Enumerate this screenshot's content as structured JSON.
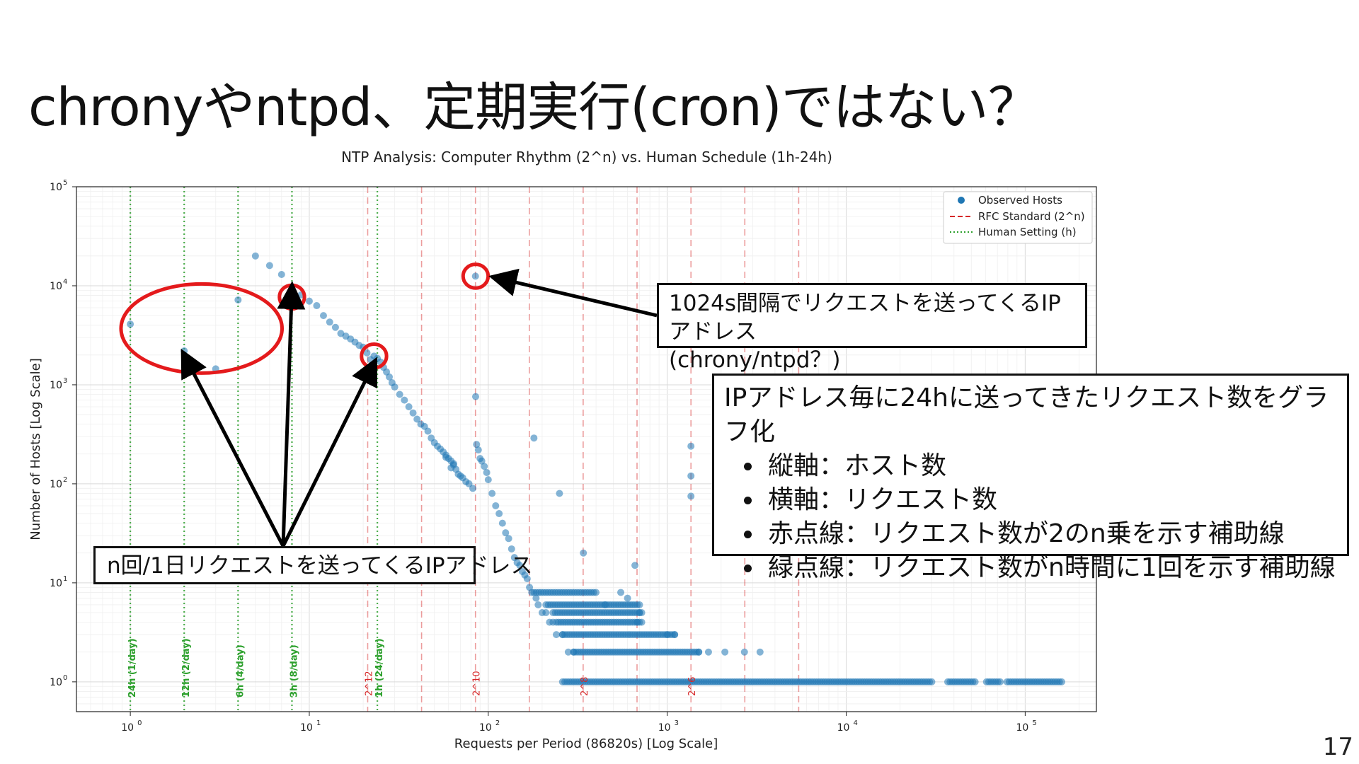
{
  "slide": {
    "title": "chronyやntpd、定期実行(cron)ではない？",
    "page_number": "17"
  },
  "callouts": {
    "ntp_1024": {
      "line1": "1024s間隔でリクエストを送ってくるIPアドレス",
      "line2": "(chrony/ntpd？)"
    },
    "daily": {
      "text": "n回/1日リクエストを送ってくるIPアドレス"
    },
    "explain": {
      "heading": "IPアドレス毎に24hに送ってきたリクエスト数をグラフ化",
      "bullets": [
        "縦軸：ホスト数",
        "横軸：リクエスト数",
        "赤点線：リクエスト数が2のn乗を示す補助線",
        "緑点線：リクエスト数がn時間に1回を示す補助線"
      ]
    }
  },
  "colors": {
    "points": "#1f77b4",
    "rfc_lines": "#d62728",
    "human_lines": "#2ca02c",
    "highlight_circles": "#e41a1c",
    "arrows": "#000000"
  },
  "chart_data": {
    "type": "scatter",
    "title": "NTP Analysis: Computer Rhythm (2^n) vs. Human Schedule (1h-24h)",
    "xlabel": "Requests per Period (86820s) [Log Scale]",
    "ylabel": "Number of Hosts [Log Scale]",
    "x_scale": "log",
    "y_scale": "log",
    "xlim": [
      0.5,
      250000
    ],
    "ylim": [
      0.5,
      100000
    ],
    "x_ticks": [
      {
        "value": 1,
        "base": "10",
        "exp": "0"
      },
      {
        "value": 10,
        "base": "10",
        "exp": "1"
      },
      {
        "value": 100,
        "base": "10",
        "exp": "2"
      },
      {
        "value": 1000,
        "base": "10",
        "exp": "3"
      },
      {
        "value": 10000,
        "base": "10",
        "exp": "4"
      },
      {
        "value": 100000,
        "base": "10",
        "exp": "5"
      }
    ],
    "y_ticks": [
      {
        "value": 1,
        "base": "10",
        "exp": "0"
      },
      {
        "value": 10,
        "base": "10",
        "exp": "1"
      },
      {
        "value": 100,
        "base": "10",
        "exp": "2"
      },
      {
        "value": 1000,
        "base": "10",
        "exp": "3"
      },
      {
        "value": 10000,
        "base": "10",
        "exp": "4"
      },
      {
        "value": 100000,
        "base": "10",
        "exp": "5"
      }
    ],
    "grid": true,
    "legend": {
      "placement": "top-right",
      "entries": [
        {
          "label": "Observed Hosts",
          "style": "point"
        },
        {
          "label": "RFC Standard (2^n)",
          "style": "dashed"
        },
        {
          "label": "Human Setting (h)",
          "style": "dotted"
        }
      ]
    },
    "rfc_lines": [
      {
        "x": 21.2,
        "label": "2^12"
      },
      {
        "x": 42.4,
        "label": ""
      },
      {
        "x": 84.8,
        "label": "2^10"
      },
      {
        "x": 169.6,
        "label": ""
      },
      {
        "x": 339,
        "label": "2^8"
      },
      {
        "x": 678,
        "label": ""
      },
      {
        "x": 1357,
        "label": "2^6"
      },
      {
        "x": 2713,
        "label": ""
      },
      {
        "x": 5426,
        "label": ""
      }
    ],
    "human_lines": [
      {
        "x": 1,
        "label": "24h (1/day)"
      },
      {
        "x": 2,
        "label": "12h (2/day)"
      },
      {
        "x": 4,
        "label": "6h (4/day)"
      },
      {
        "x": 8,
        "label": "3h (8/day)"
      },
      {
        "x": 24,
        "label": "1h (24/day)"
      }
    ],
    "highlight_circles": [
      {
        "x": 2.5,
        "y": 3700,
        "rx_decades": 0.45,
        "ry_decades": 0.45
      },
      {
        "x": 8,
        "y": 7700,
        "rx_decades": 0.07,
        "ry_decades": 0.12
      },
      {
        "x": 23,
        "y": 1950,
        "rx_decades": 0.07,
        "ry_decades": 0.12
      },
      {
        "x": 85,
        "y": 12500,
        "rx_decades": 0.07,
        "ry_decades": 0.12
      }
    ],
    "series": [
      {
        "name": "Observed Hosts",
        "points": [
          [
            1,
            4100
          ],
          [
            2,
            2200
          ],
          [
            3,
            1450
          ],
          [
            4,
            7200
          ],
          [
            5,
            20000
          ],
          [
            6,
            16000
          ],
          [
            7,
            13000
          ],
          [
            8,
            7700
          ],
          [
            9,
            8100
          ],
          [
            10,
            7000
          ],
          [
            11,
            6300
          ],
          [
            12,
            5000
          ],
          [
            13,
            4300
          ],
          [
            14,
            3800
          ],
          [
            15,
            3300
          ],
          [
            16,
            3100
          ],
          [
            17,
            2900
          ],
          [
            18,
            2700
          ],
          [
            19,
            2500
          ],
          [
            20,
            2400
          ],
          [
            21,
            2100
          ],
          [
            22,
            1800
          ],
          [
            23,
            1950
          ],
          [
            24,
            1850
          ],
          [
            25,
            1700
          ],
          [
            26,
            1500
          ],
          [
            27,
            1350
          ],
          [
            28,
            1200
          ],
          [
            29,
            1050
          ],
          [
            30,
            950
          ],
          [
            32,
            800
          ],
          [
            34,
            700
          ],
          [
            36,
            600
          ],
          [
            38,
            520
          ],
          [
            40,
            450
          ],
          [
            42,
            400
          ],
          [
            44,
            380
          ],
          [
            46,
            340
          ],
          [
            48,
            290
          ],
          [
            50,
            260
          ],
          [
            52,
            240
          ],
          [
            54,
            225
          ],
          [
            56,
            210
          ],
          [
            58,
            195
          ],
          [
            60,
            180
          ],
          [
            62,
            170
          ],
          [
            64,
            160
          ],
          [
            66,
            140
          ],
          [
            68,
            125
          ],
          [
            70,
            120
          ],
          [
            72,
            115
          ],
          [
            75,
            105
          ],
          [
            78,
            100
          ],
          [
            82,
            90
          ],
          [
            84.8,
            12500
          ],
          [
            85,
            760
          ],
          [
            86,
            250
          ],
          [
            88,
            220
          ],
          [
            90,
            180
          ],
          [
            92,
            170
          ],
          [
            95,
            150
          ],
          [
            98,
            130
          ],
          [
            100,
            110
          ],
          [
            105,
            80
          ],
          [
            110,
            60
          ],
          [
            115,
            50
          ],
          [
            120,
            40
          ],
          [
            125,
            32
          ],
          [
            130,
            28
          ],
          [
            135,
            22
          ],
          [
            140,
            18
          ],
          [
            145,
            16
          ],
          [
            150,
            15
          ],
          [
            155,
            13
          ],
          [
            160,
            12
          ],
          [
            165,
            11
          ],
          [
            170,
            9
          ],
          [
            175,
            8
          ],
          [
            180,
            290
          ],
          [
            185,
            7
          ],
          [
            190,
            6
          ],
          [
            200,
            5
          ],
          [
            210,
            5
          ],
          [
            220,
            4
          ],
          [
            230,
            4
          ],
          [
            240,
            3
          ],
          [
            250,
            80
          ],
          [
            260,
            3
          ],
          [
            280,
            2
          ],
          [
            300,
            2
          ],
          [
            340,
            20
          ],
          [
            450,
            6
          ],
          [
            550,
            8
          ],
          [
            600,
            7
          ],
          [
            660,
            15
          ],
          [
            680,
            4
          ],
          [
            700,
            5
          ],
          [
            1000,
            3
          ],
          [
            1100,
            3
          ],
          [
            1357,
            240
          ],
          [
            1357,
            120
          ],
          [
            1357,
            75
          ],
          [
            1500,
            2
          ],
          [
            1700,
            2
          ],
          [
            2100,
            2
          ],
          [
            2700,
            2
          ],
          [
            3300,
            2
          ],
          [
            62,
            145
          ],
          [
            58,
            185
          ],
          [
            64,
            155
          ]
        ],
        "bands": [
          {
            "y": 1,
            "x_from": 260,
            "x_to": 160000
          },
          {
            "y": 2,
            "x_from": 300,
            "x_to": 1500
          },
          {
            "y": 3,
            "x_from": 260,
            "x_to": 1100
          },
          {
            "y": 4,
            "x_from": 240,
            "x_to": 720
          },
          {
            "y": 5,
            "x_from": 230,
            "x_to": 720
          },
          {
            "y": 6,
            "x_from": 210,
            "x_to": 700
          },
          {
            "y": 8,
            "x_from": 180,
            "x_to": 400
          }
        ]
      }
    ]
  }
}
